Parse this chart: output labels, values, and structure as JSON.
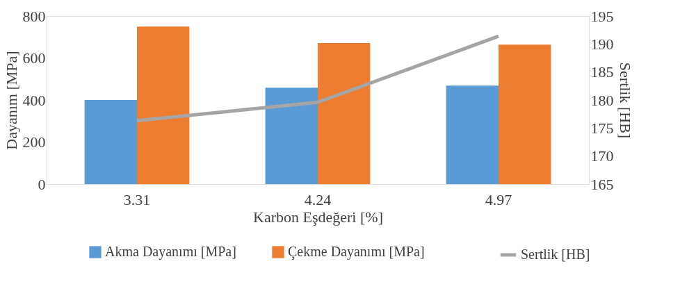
{
  "chart_data": {
    "type": "bar",
    "xlabel": "Karbon Eşdeğeri [%]",
    "ylabel": "Dayanım [MPa]",
    "y2label": "Sertlik [HB]",
    "categories": [
      "3.31",
      "4.24",
      "4.97"
    ],
    "series": [
      {
        "name": "Akma Dayanımı [MPa]",
        "color": "#5b9bd5",
        "values": [
          400,
          459,
          469
        ]
      },
      {
        "name": "Çekme Dayanımı [MPa]",
        "color": "#ed7d31",
        "values": [
          750,
          671,
          664
        ]
      },
      {
        "name": "Sertlik [HB]",
        "type": "line",
        "axis": "y2",
        "color": "#a5a5a5",
        "values": [
          176.3,
          179.6,
          191.4
        ]
      }
    ],
    "ylim": [
      0,
      800
    ],
    "yticks": [
      0,
      200,
      400,
      600,
      800
    ],
    "y2lim": [
      165,
      195
    ],
    "y2ticks": [
      165,
      170,
      175,
      180,
      185,
      190,
      195
    ],
    "grid": false,
    "legend": "bottom",
    "marker": "none",
    "line_style": "solid"
  }
}
